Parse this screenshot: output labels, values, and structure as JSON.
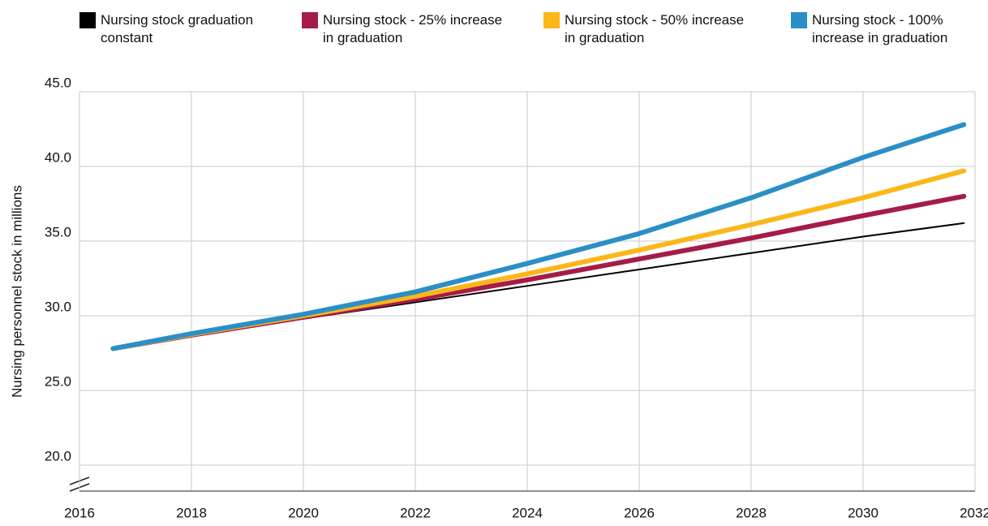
{
  "chart_data": {
    "type": "line",
    "ylabel": "Nursing personnel stock in millions",
    "x": [
      2016.6,
      2018,
      2020,
      2022,
      2024,
      2026,
      2028,
      2030,
      2031.8
    ],
    "series": [
      {
        "name": "Nursing stock graduation constant",
        "color": "#000000",
        "values": [
          27.8,
          28.7,
          29.8,
          30.9,
          32.0,
          33.1,
          34.2,
          35.3,
          36.2
        ]
      },
      {
        "name": "Nursing stock - 25% increase in graduation",
        "color": "#a51c48",
        "values": [
          27.8,
          28.7,
          29.9,
          31.1,
          32.4,
          33.8,
          35.2,
          36.7,
          38.0
        ]
      },
      {
        "name": "Nursing stock - 50% increase in graduation",
        "color": "#fbb719",
        "values": [
          27.8,
          28.75,
          30.0,
          31.3,
          32.8,
          34.4,
          36.1,
          37.9,
          39.7
        ]
      },
      {
        "name": "Nursing stock - 100% increase in graduation",
        "color": "#2a8fc7",
        "values": [
          27.8,
          28.8,
          30.1,
          31.6,
          33.5,
          35.5,
          37.9,
          40.6,
          42.8
        ]
      }
    ],
    "xlim": [
      2016,
      2032
    ],
    "xticks": [
      2016,
      2018,
      2020,
      2022,
      2024,
      2026,
      2028,
      2030,
      2032
    ],
    "ylim": [
      18.26,
      45
    ],
    "yticks": [
      {
        "value": 20,
        "label": "20.0"
      },
      {
        "value": 25,
        "label": "25.0"
      },
      {
        "value": 30,
        "label": "30.0"
      },
      {
        "value": 35,
        "label": "35.0"
      },
      {
        "value": 40,
        "label": "40.0"
      },
      {
        "value": 45,
        "label": "45.0"
      }
    ],
    "grid": true
  }
}
